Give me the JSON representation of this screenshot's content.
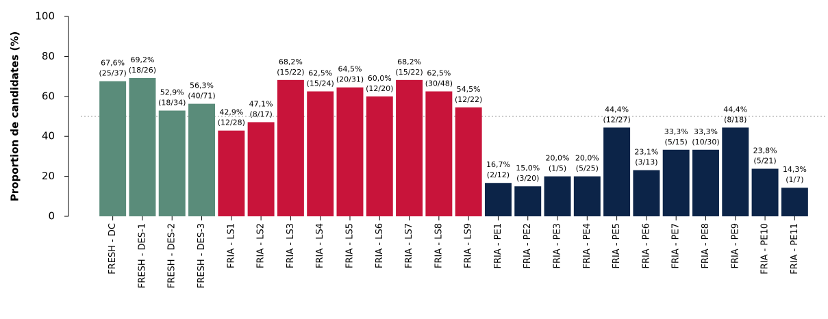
{
  "chart_data": {
    "type": "bar",
    "y_label": "Proportion de candidates (%)",
    "categories": [
      "FRESH - DC",
      "FRESH - DES-1",
      "FRESH - DES-2",
      "FRESH - DES-3",
      "FRIA - LS1",
      "FRIA - LS2",
      "FRIA - LS3",
      "FRIA - LS4",
      "FRIA - LS5",
      "FRIA - LS6",
      "FRIA - LS7",
      "FRIA - LS8",
      "FRIA - LS9",
      "FRIA - PE1",
      "FRIA - PE2",
      "FRIA - PE3",
      "FRIA - PE4",
      "FRIA - PE5",
      "FRIA - PE6",
      "FRIA - PE7",
      "FRIA - PE8",
      "FRIA - PE9",
      "FRIA - PE10",
      "FRIA - PE11"
    ],
    "values": [
      67.6,
      69.2,
      52.9,
      56.3,
      42.9,
      47.1,
      68.2,
      62.5,
      64.5,
      60.0,
      68.2,
      62.5,
      54.5,
      16.7,
      15.0,
      20.0,
      20.0,
      44.4,
      23.1,
      33.3,
      33.3,
      44.4,
      23.8,
      14.3
    ],
    "value_labels": [
      "67,6%",
      "69,2%",
      "52,9%",
      "56,3%",
      "42,9%",
      "47,1%",
      "68,2%",
      "62,5%",
      "64,5%",
      "60,0%",
      "68,2%",
      "62,5%",
      "54,5%",
      "16,7%",
      "15,0%",
      "20,0%",
      "20,0%",
      "44,4%",
      "23,1%",
      "33,3%",
      "33,3%",
      "44,4%",
      "23,8%",
      "14,3%"
    ],
    "count_labels": [
      "(25/37)",
      "(18/26)",
      "(18/34)",
      "(40/71)",
      "(12/28)",
      "(8/17)",
      "(15/22)",
      "(15/24)",
      "(20/31)",
      "(12/20)",
      "(15/22)",
      "(30/48)",
      "(12/22)",
      "(2/12)",
      "(3/20)",
      "(1/5)",
      "(5/25)",
      "(12/27)",
      "(3/13)",
      "(5/15)",
      "(10/30)",
      "(8/18)",
      "(5/21)",
      "(1/7)"
    ],
    "colors": [
      "#5a8c7a",
      "#5a8c7a",
      "#5a8c7a",
      "#5a8c7a",
      "#c8143a",
      "#c8143a",
      "#c8143a",
      "#c8143a",
      "#c8143a",
      "#c8143a",
      "#c8143a",
      "#c8143a",
      "#c8143a",
      "#0c2448",
      "#0c2448",
      "#0c2448",
      "#0c2448",
      "#0c2448",
      "#0c2448",
      "#0c2448",
      "#0c2448",
      "#0c2448",
      "#0c2448",
      "#0c2448"
    ],
    "ylim": [
      0,
      100
    ],
    "yticks": [
      0,
      20,
      40,
      60,
      80,
      100
    ],
    "reference_line": 50
  }
}
